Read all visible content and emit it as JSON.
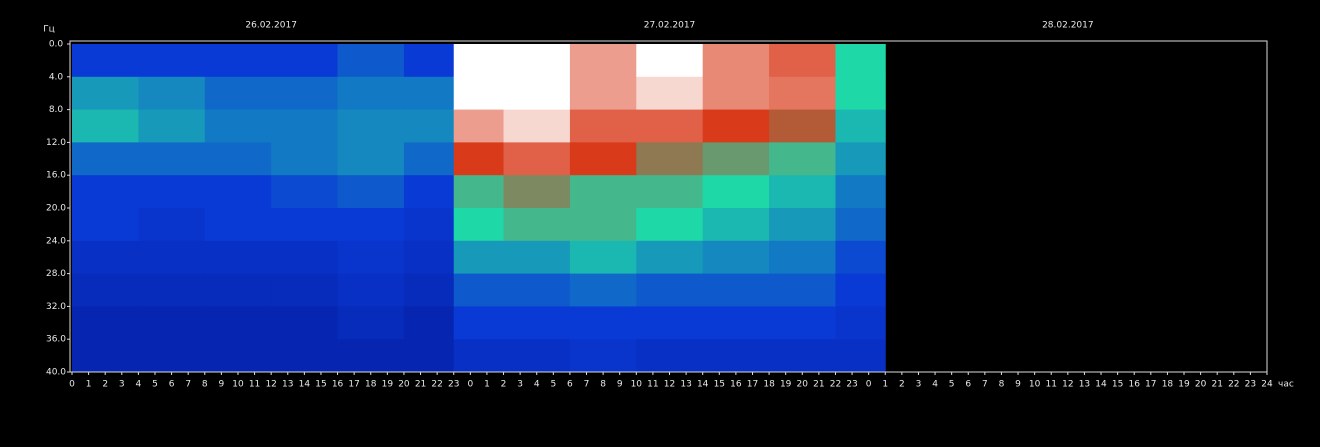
{
  "chart_data": {
    "type": "heatmap",
    "y_label": "Гц",
    "x_label": "час",
    "days": [
      "26.02.2017",
      "27.02.2017",
      "28.02.2017"
    ],
    "xlim": [
      0,
      72
    ],
    "ylim": [
      0,
      40
    ],
    "y_inverted": true,
    "yticks": [
      {
        "value": 0,
        "label": "0.0"
      },
      {
        "value": 4,
        "label": "4.0"
      },
      {
        "value": 8,
        "label": "8.0"
      },
      {
        "value": 12,
        "label": "12.0"
      },
      {
        "value": 16,
        "label": "16.0"
      },
      {
        "value": 20,
        "label": "20.0"
      },
      {
        "value": 24,
        "label": "24.0"
      },
      {
        "value": 28,
        "label": "28.0"
      },
      {
        "value": 32,
        "label": "32.0"
      },
      {
        "value": 36,
        "label": "36.0"
      },
      {
        "value": 40,
        "label": "40.0"
      }
    ],
    "xticks": [
      0,
      1,
      2,
      3,
      4,
      5,
      6,
      7,
      8,
      9,
      10,
      11,
      12,
      13,
      14,
      15,
      16,
      17,
      18,
      19,
      20,
      21,
      22,
      23,
      {
        "value": 24,
        "label": "0"
      },
      {
        "value": 25,
        "label": "1"
      },
      {
        "value": 26,
        "label": "2"
      },
      {
        "value": 27,
        "label": "3"
      },
      {
        "value": 28,
        "label": "4"
      },
      {
        "value": 29,
        "label": "5"
      },
      {
        "value": 30,
        "label": "6"
      },
      {
        "value": 31,
        "label": "7"
      },
      {
        "value": 32,
        "label": "8"
      },
      {
        "value": 33,
        "label": "9"
      },
      {
        "value": 34,
        "label": "10"
      },
      {
        "value": 35,
        "label": "11"
      },
      {
        "value": 36,
        "label": "12"
      },
      {
        "value": 37,
        "label": "13"
      },
      {
        "value": 38,
        "label": "14"
      },
      {
        "value": 39,
        "label": "15"
      },
      {
        "value": 40,
        "label": "16"
      },
      {
        "value": 41,
        "label": "17"
      },
      {
        "value": 42,
        "label": "18"
      },
      {
        "value": 43,
        "label": "19"
      },
      {
        "value": 44,
        "label": "20"
      },
      {
        "value": 45,
        "label": "21"
      },
      {
        "value": 46,
        "label": "22"
      },
      {
        "value": 47,
        "label": "23"
      },
      {
        "value": 48,
        "label": "0"
      },
      {
        "value": 49,
        "label": "1"
      },
      {
        "value": 50,
        "label": "2"
      },
      {
        "value": 51,
        "label": "3"
      },
      {
        "value": 52,
        "label": "4"
      },
      {
        "value": 53,
        "label": "5"
      },
      {
        "value": 54,
        "label": "6"
      },
      {
        "value": 55,
        "label": "7"
      },
      {
        "value": 56,
        "label": "8"
      },
      {
        "value": 57,
        "label": "9"
      },
      {
        "value": 58,
        "label": "10"
      },
      {
        "value": 59,
        "label": "11"
      },
      {
        "value": 60,
        "label": "12"
      },
      {
        "value": 61,
        "label": "13"
      },
      {
        "value": 62,
        "label": "14"
      },
      {
        "value": 63,
        "label": "15"
      },
      {
        "value": 64,
        "label": "16"
      },
      {
        "value": 65,
        "label": "17"
      },
      {
        "value": 66,
        "label": "18"
      },
      {
        "value": 67,
        "label": "19"
      },
      {
        "value": 68,
        "label": "20"
      },
      {
        "value": 69,
        "label": "21"
      },
      {
        "value": 70,
        "label": "22"
      },
      {
        "value": 71,
        "label": "23"
      },
      {
        "value": 72,
        "label": "24"
      }
    ],
    "x_edges": [
      0,
      4,
      8,
      12,
      16,
      20,
      23,
      26,
      30,
      34,
      38,
      42,
      46,
      49
    ],
    "y_edges": [
      0,
      4,
      8,
      12,
      16,
      20,
      24,
      28,
      32,
      36,
      40
    ],
    "colorscale": [
      "#00087a",
      "#0a3ad6",
      "#1fd8a8",
      "#d83a1a",
      "#ffffff"
    ],
    "z": [
      [
        1,
        1.6,
        1.8,
        1.3,
        1,
        1,
        0.8,
        0.7,
        0.6,
        0.6
      ],
      [
        1,
        1.5,
        1.6,
        1.3,
        1,
        0.9,
        0.8,
        0.7,
        0.6,
        0.6
      ],
      [
        1,
        1.3,
        1.4,
        1.3,
        1,
        1,
        0.8,
        0.7,
        0.6,
        0.6
      ],
      [
        1,
        1.3,
        1.4,
        1.4,
        1.1,
        1,
        0.8,
        0.7,
        0.6,
        0.6
      ],
      [
        1.2,
        1.4,
        1.5,
        1.5,
        1.2,
        1,
        0.9,
        0.8,
        0.7,
        0.6
      ],
      [
        1,
        1.4,
        1.5,
        1.3,
        1,
        0.9,
        0.8,
        0.7,
        0.6,
        0.6
      ],
      [
        4,
        4,
        3.5,
        3,
        2.2,
        2,
        1.6,
        1.2,
        1,
        0.8
      ],
      [
        4,
        4,
        3.8,
        3.2,
        2.5,
        2.2,
        1.6,
        1.2,
        1,
        0.8
      ],
      [
        3.5,
        3.5,
        3.2,
        3,
        2.2,
        2.2,
        1.8,
        1.3,
        1,
        0.9
      ],
      [
        4,
        3.8,
        3.2,
        2.6,
        2.2,
        2,
        1.6,
        1.2,
        1,
        0.8
      ],
      [
        3.4,
        3.4,
        3,
        2.4,
        2,
        1.8,
        1.5,
        1.2,
        1,
        0.8
      ],
      [
        3.2,
        3.3,
        2.8,
        2.2,
        1.8,
        1.6,
        1.4,
        1.2,
        1,
        0.8
      ],
      [
        2,
        2,
        1.8,
        1.6,
        1.4,
        1.3,
        1.1,
        1,
        0.9,
        0.8
      ]
    ]
  }
}
